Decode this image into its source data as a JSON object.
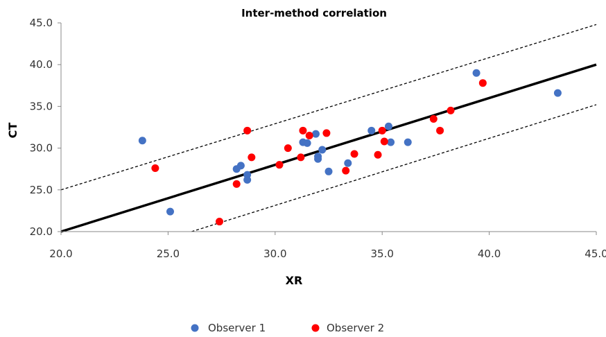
{
  "chart_data": {
    "type": "scatter",
    "title": "Inter-method correlation",
    "xlabel": "XR",
    "ylabel": "CT",
    "xlim": [
      20,
      45
    ],
    "ylim": [
      20,
      45
    ],
    "x_ticks": [
      "20.0",
      "25.0",
      "30.0",
      "35.0",
      "40.0",
      "45.0"
    ],
    "y_ticks": [
      "20.0",
      "25.0",
      "30.0",
      "35.0",
      "40.0",
      "45.0"
    ],
    "grid": false,
    "legend_position": "bottom",
    "series": [
      {
        "name": "Observer 1",
        "color": "#4472c4",
        "points": [
          [
            23.8,
            30.9
          ],
          [
            25.1,
            22.4
          ],
          [
            28.2,
            27.5
          ],
          [
            28.4,
            27.9
          ],
          [
            28.7,
            26.8
          ],
          [
            28.7,
            26.2
          ],
          [
            31.3,
            30.7
          ],
          [
            31.5,
            30.6
          ],
          [
            31.9,
            31.7
          ],
          [
            32.0,
            29.0
          ],
          [
            32.0,
            28.7
          ],
          [
            32.2,
            29.8
          ],
          [
            32.5,
            27.2
          ],
          [
            33.4,
            28.2
          ],
          [
            34.5,
            32.1
          ],
          [
            35.3,
            32.6
          ],
          [
            35.4,
            30.7
          ],
          [
            36.2,
            30.7
          ],
          [
            39.4,
            39.0
          ],
          [
            43.2,
            36.6
          ]
        ]
      },
      {
        "name": "Observer 2",
        "color": "#ff0000",
        "points": [
          [
            24.4,
            27.6
          ],
          [
            27.4,
            21.2
          ],
          [
            28.2,
            25.7
          ],
          [
            28.7,
            32.1
          ],
          [
            28.9,
            28.9
          ],
          [
            30.2,
            28.0
          ],
          [
            30.6,
            30.0
          ],
          [
            31.2,
            28.9
          ],
          [
            31.3,
            32.1
          ],
          [
            31.6,
            31.5
          ],
          [
            32.4,
            31.8
          ],
          [
            33.3,
            27.3
          ],
          [
            33.7,
            29.3
          ],
          [
            34.8,
            29.2
          ],
          [
            35.0,
            32.1
          ],
          [
            35.1,
            30.8
          ],
          [
            37.4,
            33.5
          ],
          [
            37.7,
            32.1
          ],
          [
            38.2,
            34.5
          ],
          [
            39.7,
            37.8
          ]
        ]
      }
    ],
    "lines": [
      {
        "style": "solid",
        "from": [
          20,
          20
        ],
        "to": [
          45,
          40
        ]
      },
      {
        "style": "dashed",
        "from": [
          20,
          25
        ],
        "to": [
          45,
          44.8
        ]
      },
      {
        "style": "dashed",
        "from": [
          26.1,
          20
        ],
        "to": [
          45,
          35.2
        ]
      }
    ]
  }
}
